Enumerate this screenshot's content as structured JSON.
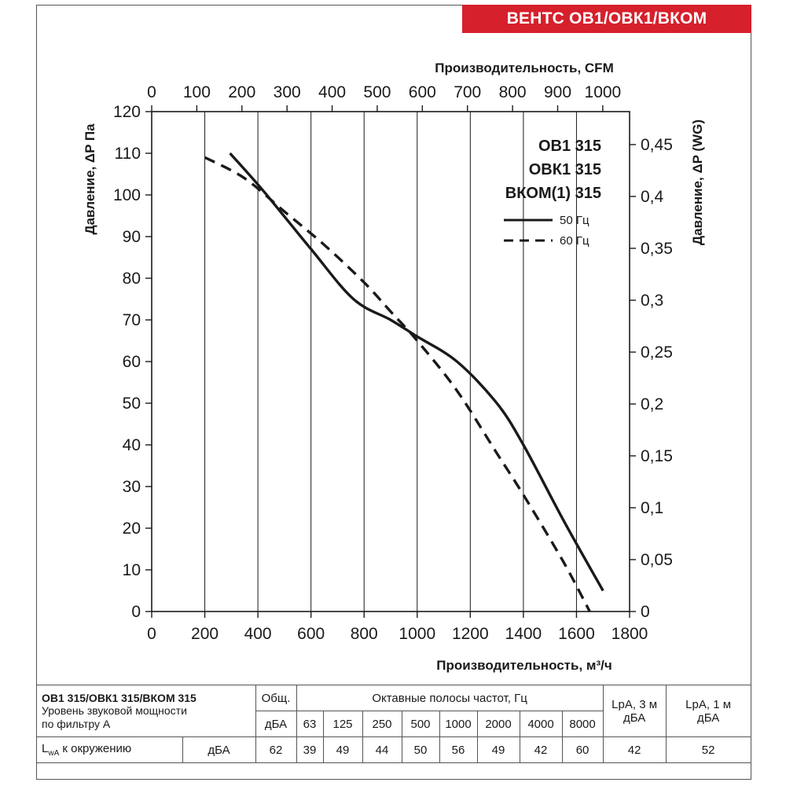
{
  "header": {
    "badge": "ВЕНТС ОВ1/ОВК1/ВКОМ"
  },
  "colors": {
    "accent": "#d6202c",
    "line": "#1a1a1a"
  },
  "chart_data": {
    "type": "line",
    "title": "",
    "models": [
      "ОВ1 315",
      "ОВК1 315",
      "ВКОМ(1) 315"
    ],
    "xlabel": "Производительность, м³/ч",
    "ylabel": "Давление, ΔP Па",
    "x2label": "Производительность, CFM",
    "y2label": "Давление, ΔP (WG)",
    "xlim": [
      0,
      1800
    ],
    "ylim": [
      0,
      120
    ],
    "x_ticks": [
      0,
      200,
      400,
      600,
      800,
      1000,
      1200,
      1400,
      1600,
      1800
    ],
    "x_tick_labels": [
      "0",
      "200",
      "400",
      "600",
      "800",
      "1000",
      "1200",
      "1400",
      "1600",
      "1800"
    ],
    "y_ticks": [
      0,
      10,
      20,
      30,
      40,
      50,
      60,
      70,
      80,
      90,
      100,
      110,
      120
    ],
    "y_tick_labels": [
      "0",
      "10",
      "20",
      "30",
      "40",
      "50",
      "60",
      "70",
      "80",
      "90",
      "100",
      "110",
      "120"
    ],
    "x2_ticks": [
      0,
      100,
      200,
      300,
      400,
      500,
      600,
      700,
      800,
      900,
      1000
    ],
    "x2_tick_labels": [
      "0",
      "100",
      "200",
      "300",
      "400",
      "500",
      "600",
      "700",
      "800",
      "900",
      "1000"
    ],
    "y2_ticks": [
      0,
      0.05,
      0.1,
      0.15,
      0.2,
      0.25,
      0.3,
      0.35,
      0.4,
      0.45
    ],
    "y2_tick_labels": [
      "0",
      "0,05",
      "0,1",
      "0,15",
      "0,2",
      "0,25",
      "0,3",
      "0,35",
      "0,4",
      "0,45"
    ],
    "grid": "vertical",
    "legend": "top-right",
    "series": [
      {
        "name": "50 Гц",
        "style": "solid",
        "x": [
          295,
          420,
          600,
          760,
          900,
          1000,
          1150,
          1300,
          1400,
          1550,
          1700
        ],
        "y": [
          110,
          101,
          87,
          75,
          70,
          66,
          60,
          50,
          40,
          22,
          5
        ]
      },
      {
        "name": "60 Гц",
        "style": "dashed",
        "x": [
          200,
          350,
          500,
          650,
          800,
          900,
          1000,
          1150,
          1300,
          1400,
          1550,
          1650
        ],
        "y": [
          109,
          104,
          96,
          88,
          79,
          72,
          65,
          53,
          38,
          28,
          12,
          0
        ]
      }
    ]
  },
  "noise_table": {
    "title": "ОВ1 315/ОВК1 315/ВКОМ 315",
    "desc_line1": "Уровень звуковой мощности",
    "desc_line2": "по фильтру А",
    "total_header": "Общ.",
    "total_unit": "дБА",
    "bands_header": "Октавные полосы частот, Гц",
    "bands": [
      "63",
      "125",
      "250",
      "500",
      "1000",
      "2000",
      "4000",
      "8000"
    ],
    "lpa3_header": "LpA, 3 м",
    "lpa3_unit": "дБА",
    "lpa1_header": "LpA, 1 м",
    "lpa1_unit": "дБА",
    "row_label_main": "L",
    "row_label_sub": "wA",
    "row_label_rest": " к окружению",
    "row_unit": "дБА",
    "row_total": "62",
    "row_values": [
      "39",
      "49",
      "44",
      "50",
      "56",
      "49",
      "42",
      "60"
    ],
    "row_lpa3": "42",
    "row_lpa1": "52"
  }
}
